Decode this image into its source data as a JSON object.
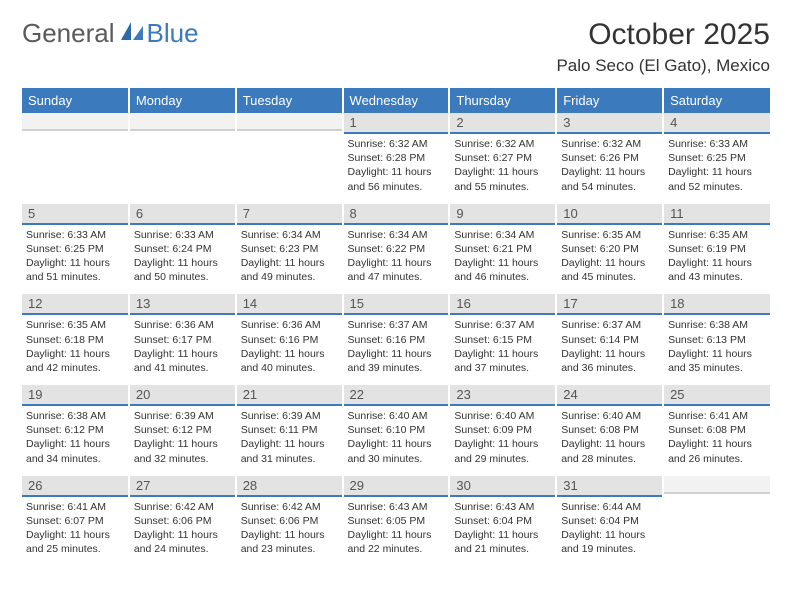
{
  "brand": {
    "part1": "General",
    "part2": "Blue"
  },
  "title": "October 2025",
  "location": "Palo Seco (El Gato), Mexico",
  "colors": {
    "accent": "#3a7abd",
    "header_text": "#ffffff",
    "daynum_bg": "#e3e3e3",
    "body_text": "#333333"
  },
  "typography": {
    "title_fontsize": 30,
    "location_fontsize": 17,
    "header_fontsize": 13,
    "cell_fontsize": 10.5
  },
  "weekdays": [
    "Sunday",
    "Monday",
    "Tuesday",
    "Wednesday",
    "Thursday",
    "Friday",
    "Saturday"
  ],
  "weeks": [
    [
      {
        "empty": true
      },
      {
        "empty": true
      },
      {
        "empty": true
      },
      {
        "day": "1",
        "sunrise": "Sunrise: 6:32 AM",
        "sunset": "Sunset: 6:28 PM",
        "daylight1": "Daylight: 11 hours",
        "daylight2": "and 56 minutes."
      },
      {
        "day": "2",
        "sunrise": "Sunrise: 6:32 AM",
        "sunset": "Sunset: 6:27 PM",
        "daylight1": "Daylight: 11 hours",
        "daylight2": "and 55 minutes."
      },
      {
        "day": "3",
        "sunrise": "Sunrise: 6:32 AM",
        "sunset": "Sunset: 6:26 PM",
        "daylight1": "Daylight: 11 hours",
        "daylight2": "and 54 minutes."
      },
      {
        "day": "4",
        "sunrise": "Sunrise: 6:33 AM",
        "sunset": "Sunset: 6:25 PM",
        "daylight1": "Daylight: 11 hours",
        "daylight2": "and 52 minutes."
      }
    ],
    [
      {
        "day": "5",
        "sunrise": "Sunrise: 6:33 AM",
        "sunset": "Sunset: 6:25 PM",
        "daylight1": "Daylight: 11 hours",
        "daylight2": "and 51 minutes."
      },
      {
        "day": "6",
        "sunrise": "Sunrise: 6:33 AM",
        "sunset": "Sunset: 6:24 PM",
        "daylight1": "Daylight: 11 hours",
        "daylight2": "and 50 minutes."
      },
      {
        "day": "7",
        "sunrise": "Sunrise: 6:34 AM",
        "sunset": "Sunset: 6:23 PM",
        "daylight1": "Daylight: 11 hours",
        "daylight2": "and 49 minutes."
      },
      {
        "day": "8",
        "sunrise": "Sunrise: 6:34 AM",
        "sunset": "Sunset: 6:22 PM",
        "daylight1": "Daylight: 11 hours",
        "daylight2": "and 47 minutes."
      },
      {
        "day": "9",
        "sunrise": "Sunrise: 6:34 AM",
        "sunset": "Sunset: 6:21 PM",
        "daylight1": "Daylight: 11 hours",
        "daylight2": "and 46 minutes."
      },
      {
        "day": "10",
        "sunrise": "Sunrise: 6:35 AM",
        "sunset": "Sunset: 6:20 PM",
        "daylight1": "Daylight: 11 hours",
        "daylight2": "and 45 minutes."
      },
      {
        "day": "11",
        "sunrise": "Sunrise: 6:35 AM",
        "sunset": "Sunset: 6:19 PM",
        "daylight1": "Daylight: 11 hours",
        "daylight2": "and 43 minutes."
      }
    ],
    [
      {
        "day": "12",
        "sunrise": "Sunrise: 6:35 AM",
        "sunset": "Sunset: 6:18 PM",
        "daylight1": "Daylight: 11 hours",
        "daylight2": "and 42 minutes."
      },
      {
        "day": "13",
        "sunrise": "Sunrise: 6:36 AM",
        "sunset": "Sunset: 6:17 PM",
        "daylight1": "Daylight: 11 hours",
        "daylight2": "and 41 minutes."
      },
      {
        "day": "14",
        "sunrise": "Sunrise: 6:36 AM",
        "sunset": "Sunset: 6:16 PM",
        "daylight1": "Daylight: 11 hours",
        "daylight2": "and 40 minutes."
      },
      {
        "day": "15",
        "sunrise": "Sunrise: 6:37 AM",
        "sunset": "Sunset: 6:16 PM",
        "daylight1": "Daylight: 11 hours",
        "daylight2": "and 39 minutes."
      },
      {
        "day": "16",
        "sunrise": "Sunrise: 6:37 AM",
        "sunset": "Sunset: 6:15 PM",
        "daylight1": "Daylight: 11 hours",
        "daylight2": "and 37 minutes."
      },
      {
        "day": "17",
        "sunrise": "Sunrise: 6:37 AM",
        "sunset": "Sunset: 6:14 PM",
        "daylight1": "Daylight: 11 hours",
        "daylight2": "and 36 minutes."
      },
      {
        "day": "18",
        "sunrise": "Sunrise: 6:38 AM",
        "sunset": "Sunset: 6:13 PM",
        "daylight1": "Daylight: 11 hours",
        "daylight2": "and 35 minutes."
      }
    ],
    [
      {
        "day": "19",
        "sunrise": "Sunrise: 6:38 AM",
        "sunset": "Sunset: 6:12 PM",
        "daylight1": "Daylight: 11 hours",
        "daylight2": "and 34 minutes."
      },
      {
        "day": "20",
        "sunrise": "Sunrise: 6:39 AM",
        "sunset": "Sunset: 6:12 PM",
        "daylight1": "Daylight: 11 hours",
        "daylight2": "and 32 minutes."
      },
      {
        "day": "21",
        "sunrise": "Sunrise: 6:39 AM",
        "sunset": "Sunset: 6:11 PM",
        "daylight1": "Daylight: 11 hours",
        "daylight2": "and 31 minutes."
      },
      {
        "day": "22",
        "sunrise": "Sunrise: 6:40 AM",
        "sunset": "Sunset: 6:10 PM",
        "daylight1": "Daylight: 11 hours",
        "daylight2": "and 30 minutes."
      },
      {
        "day": "23",
        "sunrise": "Sunrise: 6:40 AM",
        "sunset": "Sunset: 6:09 PM",
        "daylight1": "Daylight: 11 hours",
        "daylight2": "and 29 minutes."
      },
      {
        "day": "24",
        "sunrise": "Sunrise: 6:40 AM",
        "sunset": "Sunset: 6:08 PM",
        "daylight1": "Daylight: 11 hours",
        "daylight2": "and 28 minutes."
      },
      {
        "day": "25",
        "sunrise": "Sunrise: 6:41 AM",
        "sunset": "Sunset: 6:08 PM",
        "daylight1": "Daylight: 11 hours",
        "daylight2": "and 26 minutes."
      }
    ],
    [
      {
        "day": "26",
        "sunrise": "Sunrise: 6:41 AM",
        "sunset": "Sunset: 6:07 PM",
        "daylight1": "Daylight: 11 hours",
        "daylight2": "and 25 minutes."
      },
      {
        "day": "27",
        "sunrise": "Sunrise: 6:42 AM",
        "sunset": "Sunset: 6:06 PM",
        "daylight1": "Daylight: 11 hours",
        "daylight2": "and 24 minutes."
      },
      {
        "day": "28",
        "sunrise": "Sunrise: 6:42 AM",
        "sunset": "Sunset: 6:06 PM",
        "daylight1": "Daylight: 11 hours",
        "daylight2": "and 23 minutes."
      },
      {
        "day": "29",
        "sunrise": "Sunrise: 6:43 AM",
        "sunset": "Sunset: 6:05 PM",
        "daylight1": "Daylight: 11 hours",
        "daylight2": "and 22 minutes."
      },
      {
        "day": "30",
        "sunrise": "Sunrise: 6:43 AM",
        "sunset": "Sunset: 6:04 PM",
        "daylight1": "Daylight: 11 hours",
        "daylight2": "and 21 minutes."
      },
      {
        "day": "31",
        "sunrise": "Sunrise: 6:44 AM",
        "sunset": "Sunset: 6:04 PM",
        "daylight1": "Daylight: 11 hours",
        "daylight2": "and 19 minutes."
      },
      {
        "empty": true
      }
    ]
  ]
}
